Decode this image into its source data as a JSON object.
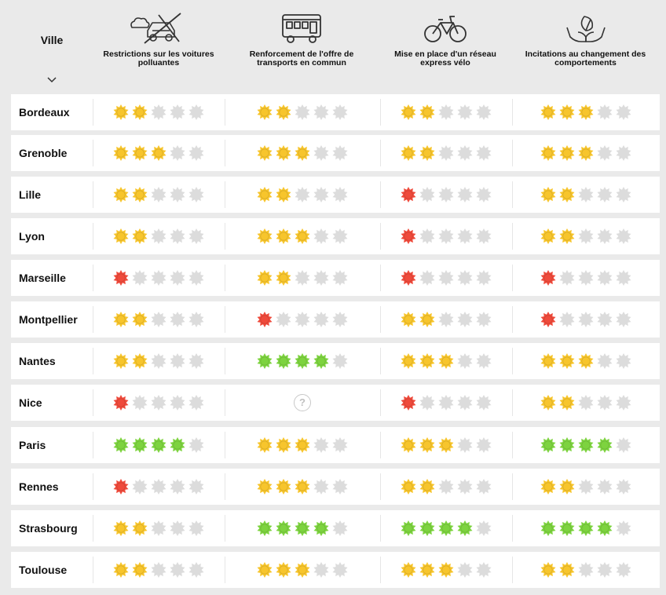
{
  "header": {
    "ville_label": "Ville",
    "columns": [
      {
        "label": "Restrictions sur les voitures polluantes",
        "icon": "crossed-car-icon"
      },
      {
        "label": "Renforcement de l'offre de transports en commun",
        "icon": "bus-icon"
      },
      {
        "label": "Mise en place d'un réseau express vélo",
        "icon": "bicycle-icon"
      },
      {
        "label": "Incitations au changement des comportements",
        "icon": "hands-leaf-icon"
      }
    ]
  },
  "colors": {
    "yellow": "#f7c52c",
    "red": "#ef4a3b",
    "green": "#7dd33f",
    "grey": "#dcdcdc"
  },
  "rows": [
    {
      "city": "Bordeaux",
      "scores": [
        {
          "n": 2,
          "c": "yellow"
        },
        {
          "n": 2,
          "c": "yellow"
        },
        {
          "n": 2,
          "c": "yellow"
        },
        {
          "n": 3,
          "c": "yellow"
        }
      ]
    },
    {
      "city": "Grenoble",
      "scores": [
        {
          "n": 3,
          "c": "yellow"
        },
        {
          "n": 3,
          "c": "yellow"
        },
        {
          "n": 2,
          "c": "yellow"
        },
        {
          "n": 3,
          "c": "yellow"
        }
      ]
    },
    {
      "city": "Lille",
      "scores": [
        {
          "n": 2,
          "c": "yellow"
        },
        {
          "n": 2,
          "c": "yellow"
        },
        {
          "n": 1,
          "c": "red"
        },
        {
          "n": 2,
          "c": "yellow"
        }
      ]
    },
    {
      "city": "Lyon",
      "scores": [
        {
          "n": 2,
          "c": "yellow"
        },
        {
          "n": 3,
          "c": "yellow"
        },
        {
          "n": 1,
          "c": "red"
        },
        {
          "n": 2,
          "c": "yellow"
        }
      ]
    },
    {
      "city": "Marseille",
      "scores": [
        {
          "n": 1,
          "c": "red"
        },
        {
          "n": 2,
          "c": "yellow"
        },
        {
          "n": 1,
          "c": "red"
        },
        {
          "n": 1,
          "c": "red"
        }
      ]
    },
    {
      "city": "Montpellier",
      "scores": [
        {
          "n": 2,
          "c": "yellow"
        },
        {
          "n": 1,
          "c": "red"
        },
        {
          "n": 2,
          "c": "yellow"
        },
        {
          "n": 1,
          "c": "red"
        }
      ]
    },
    {
      "city": "Nantes",
      "scores": [
        {
          "n": 2,
          "c": "yellow"
        },
        {
          "n": 4,
          "c": "green"
        },
        {
          "n": 3,
          "c": "yellow"
        },
        {
          "n": 3,
          "c": "yellow"
        }
      ]
    },
    {
      "city": "Nice",
      "scores": [
        {
          "n": 1,
          "c": "red"
        },
        {
          "n": 0,
          "c": "unknown",
          "label": "?"
        },
        {
          "n": 1,
          "c": "red"
        },
        {
          "n": 2,
          "c": "yellow"
        }
      ]
    },
    {
      "city": "Paris",
      "scores": [
        {
          "n": 4,
          "c": "green"
        },
        {
          "n": 3,
          "c": "yellow"
        },
        {
          "n": 3,
          "c": "yellow"
        },
        {
          "n": 4,
          "c": "green"
        }
      ]
    },
    {
      "city": "Rennes",
      "scores": [
        {
          "n": 1,
          "c": "red"
        },
        {
          "n": 3,
          "c": "yellow"
        },
        {
          "n": 2,
          "c": "yellow"
        },
        {
          "n": 2,
          "c": "yellow"
        }
      ]
    },
    {
      "city": "Strasbourg",
      "scores": [
        {
          "n": 2,
          "c": "yellow"
        },
        {
          "n": 4,
          "c": "green"
        },
        {
          "n": 4,
          "c": "green"
        },
        {
          "n": 4,
          "c": "green"
        }
      ]
    },
    {
      "city": "Toulouse",
      "scores": [
        {
          "n": 2,
          "c": "yellow"
        },
        {
          "n": 3,
          "c": "yellow"
        },
        {
          "n": 3,
          "c": "yellow"
        },
        {
          "n": 2,
          "c": "yellow"
        }
      ]
    }
  ]
}
